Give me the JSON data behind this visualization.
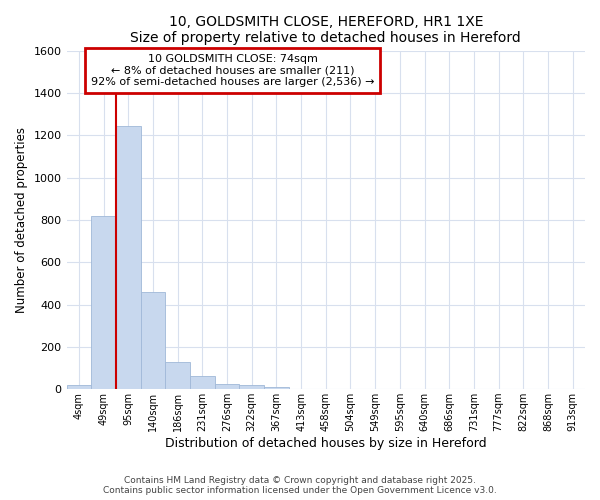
{
  "title": "10, GOLDSMITH CLOSE, HEREFORD, HR1 1XE",
  "subtitle": "Size of property relative to detached houses in Hereford",
  "xlabel": "Distribution of detached houses by size in Hereford",
  "ylabel": "Number of detached properties",
  "categories": [
    "4sqm",
    "49sqm",
    "95sqm",
    "140sqm",
    "186sqm",
    "231sqm",
    "276sqm",
    "322sqm",
    "367sqm",
    "413sqm",
    "458sqm",
    "504sqm",
    "549sqm",
    "595sqm",
    "640sqm",
    "686sqm",
    "731sqm",
    "777sqm",
    "822sqm",
    "868sqm",
    "913sqm"
  ],
  "values": [
    20,
    820,
    1245,
    460,
    130,
    60,
    25,
    20,
    12,
    0,
    0,
    0,
    0,
    0,
    0,
    0,
    0,
    0,
    0,
    0,
    0
  ],
  "bar_color": "#c8d8ee",
  "bar_edge_color": "#a0b8d8",
  "grid_color": "#d8e0ee",
  "vline_x": 1.5,
  "vline_color": "#cc0000",
  "annotation_line1": "10 GOLDSMITH CLOSE: 74sqm",
  "annotation_line2": "← 8% of detached houses are smaller (211)",
  "annotation_line3": "92% of semi-detached houses are larger (2,536) →",
  "annotation_border_color": "#cc0000",
  "ylim": [
    0,
    1600
  ],
  "yticks": [
    0,
    200,
    400,
    600,
    800,
    1000,
    1200,
    1400,
    1600
  ],
  "footer1": "Contains HM Land Registry data © Crown copyright and database right 2025.",
  "footer2": "Contains public sector information licensed under the Open Government Licence v3.0.",
  "bg_color": "#ffffff",
  "plot_bg_color": "#ffffff"
}
